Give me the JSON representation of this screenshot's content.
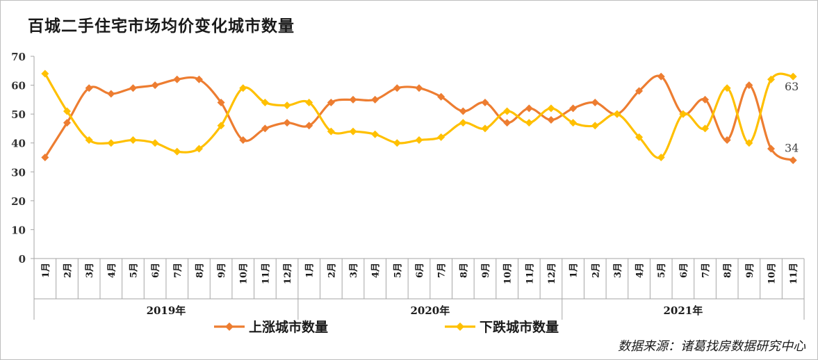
{
  "chart_data": {
    "type": "line",
    "title": "百城二手住宅市场均价变化城市数量",
    "ylim": [
      0,
      70
    ],
    "yticks": [
      "0",
      "10",
      "20",
      "30",
      "40",
      "50",
      "60",
      "70"
    ],
    "groups": [
      {
        "label": "2019年",
        "months": [
          "1月",
          "2月",
          "3月",
          "4月",
          "5月",
          "6月",
          "7月",
          "8月",
          "9月",
          "10月",
          "11月",
          "12月"
        ]
      },
      {
        "label": "2020年",
        "months": [
          "1月",
          "2月",
          "3月",
          "4月",
          "5月",
          "6月",
          "7月",
          "8月",
          "9月",
          "10月",
          "11月",
          "12月"
        ]
      },
      {
        "label": "2021年",
        "months": [
          "1月",
          "2月",
          "3月",
          "4月",
          "5月",
          "6月",
          "7月",
          "8月",
          "9月",
          "10月",
          "11月"
        ]
      }
    ],
    "series": [
      {
        "name": "上涨城市数量",
        "color": "#ED7D31",
        "values": [
          35,
          47,
          59,
          57,
          59,
          60,
          62,
          62,
          54,
          41,
          45,
          47,
          46,
          54,
          55,
          55,
          59,
          59,
          56,
          51,
          54,
          47,
          52,
          48,
          52,
          54,
          50,
          58,
          63,
          50,
          55,
          41,
          60,
          38,
          34
        ]
      },
      {
        "name": "下跌城市数量",
        "color": "#FFC000",
        "values": [
          64,
          51,
          41,
          40,
          41,
          40,
          37,
          38,
          46,
          59,
          54,
          53,
          54,
          44,
          44,
          43,
          40,
          41,
          42,
          47,
          45,
          51,
          47,
          52,
          47,
          46,
          50,
          42,
          35,
          50,
          45,
          59,
          40,
          62,
          63
        ]
      }
    ],
    "end_labels": [
      "34",
      "63"
    ]
  },
  "source": "数据来源：诸葛找房数据研究中心"
}
